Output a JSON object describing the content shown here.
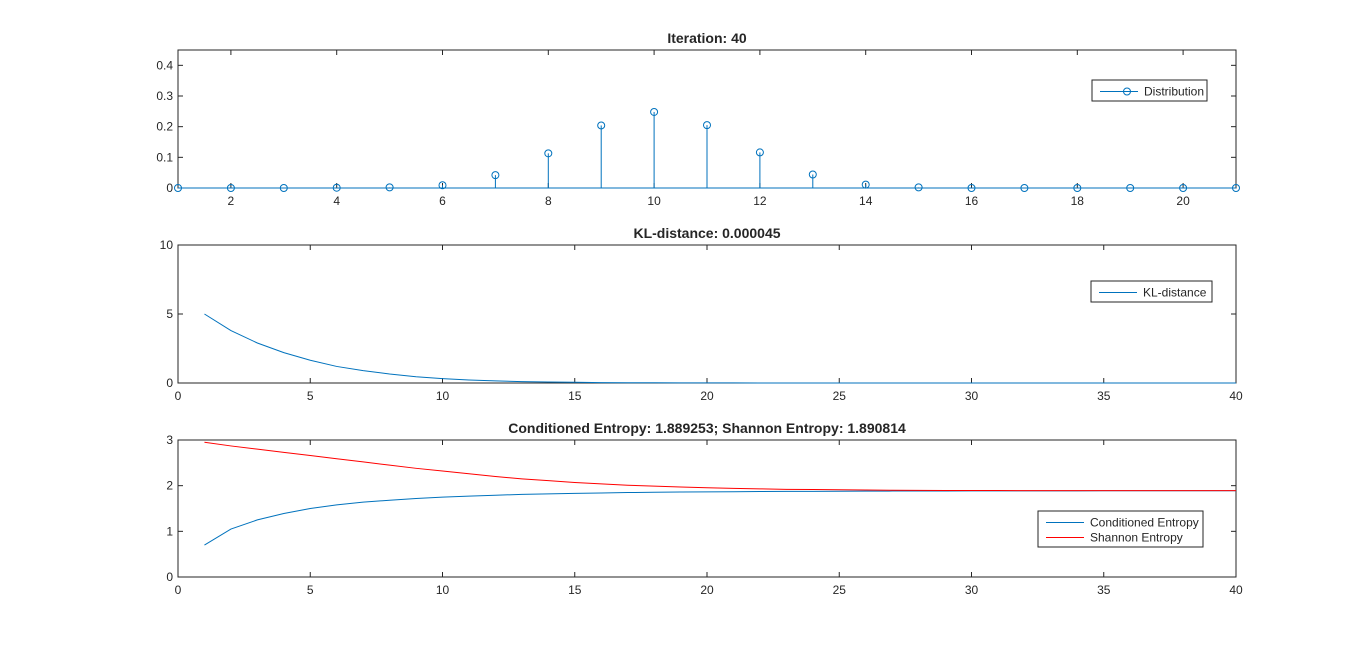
{
  "chart_data": [
    {
      "type": "stem",
      "title": "Iteration: 40",
      "xlabel": "",
      "ylabel": "",
      "xlim": [
        1,
        21
      ],
      "ylim": [
        0,
        0.45
      ],
      "xticks": [
        "2",
        "4",
        "6",
        "8",
        "10",
        "12",
        "14",
        "16",
        "18",
        "20"
      ],
      "yticks": [
        "0",
        "0.1",
        "0.2",
        "0.3",
        "0.4"
      ],
      "grid": false,
      "legend_position": "top-right",
      "series": [
        {
          "name": "Distribution",
          "color": "#0072BD",
          "x": [
            1,
            2,
            3,
            4,
            5,
            6,
            7,
            8,
            9,
            10,
            11,
            12,
            13,
            14,
            15,
            16,
            17,
            18,
            19,
            20,
            21
          ],
          "values": [
            0.0,
            0.0,
            0.0,
            0.001,
            0.002,
            0.009,
            0.042,
            0.113,
            0.204,
            0.248,
            0.205,
            0.116,
            0.044,
            0.011,
            0.002,
            0.0,
            0.0,
            0.0,
            0.0,
            0.0,
            0.0
          ]
        }
      ]
    },
    {
      "type": "line",
      "title": "KL-distance: 0.000045",
      "xlabel": "",
      "ylabel": "",
      "xlim": [
        0,
        40
      ],
      "ylim": [
        0,
        10
      ],
      "xticks": [
        "0",
        "5",
        "10",
        "15",
        "20",
        "25",
        "30",
        "35",
        "40"
      ],
      "yticks": [
        "0",
        "5",
        "10"
      ],
      "grid": false,
      "legend_position": "top-right",
      "series": [
        {
          "name": "KL-distance",
          "color": "#0072BD",
          "x": [
            1,
            2,
            3,
            4,
            5,
            6,
            7,
            8,
            9,
            10,
            11,
            12,
            13,
            14,
            15,
            16,
            17,
            18,
            19,
            20,
            21,
            22,
            23,
            24,
            25,
            26,
            27,
            28,
            29,
            30,
            31,
            32,
            33,
            34,
            35,
            36,
            37,
            38,
            39,
            40
          ],
          "values": [
            5.0,
            3.8,
            2.9,
            2.2,
            1.65,
            1.2,
            0.9,
            0.65,
            0.45,
            0.32,
            0.22,
            0.15,
            0.1,
            0.07,
            0.05,
            0.03,
            0.02,
            0.015,
            0.01,
            0.007,
            0.005,
            0.003,
            0.002,
            0.001,
            0.001,
            0.0,
            0.0,
            0.0,
            0.0,
            0.0,
            0.0,
            0.0,
            0.0,
            0.0,
            0.0,
            0.0,
            0.0,
            0.0,
            0.0,
            0.0
          ]
        }
      ]
    },
    {
      "type": "line",
      "title": "Conditioned Entropy: 1.889253; Shannon Entropy: 1.890814",
      "xlabel": "",
      "ylabel": "",
      "xlim": [
        0,
        40
      ],
      "ylim": [
        0,
        3
      ],
      "xticks": [
        "0",
        "5",
        "10",
        "15",
        "20",
        "25",
        "30",
        "35",
        "40"
      ],
      "yticks": [
        "0",
        "1",
        "2",
        "3"
      ],
      "grid": false,
      "legend_position": "bottom-right",
      "series": [
        {
          "name": "Conditioned Entropy",
          "color": "#0072BD",
          "x": [
            1,
            2,
            3,
            4,
            5,
            6,
            7,
            8,
            9,
            10,
            11,
            12,
            13,
            14,
            15,
            16,
            17,
            18,
            19,
            20,
            21,
            22,
            23,
            24,
            25,
            26,
            27,
            28,
            29,
            30,
            31,
            32,
            33,
            34,
            35,
            36,
            37,
            38,
            39,
            40
          ],
          "values": [
            0.7,
            1.05,
            1.25,
            1.39,
            1.5,
            1.58,
            1.64,
            1.68,
            1.72,
            1.75,
            1.77,
            1.79,
            1.81,
            1.82,
            1.83,
            1.84,
            1.85,
            1.855,
            1.86,
            1.865,
            1.868,
            1.871,
            1.874,
            1.876,
            1.878,
            1.88,
            1.882,
            1.883,
            1.884,
            1.885,
            1.886,
            1.886,
            1.887,
            1.887,
            1.888,
            1.888,
            1.888,
            1.889,
            1.889,
            1.889
          ]
        },
        {
          "name": "Shannon Entropy",
          "color": "#FF0000",
          "x": [
            1,
            2,
            3,
            4,
            5,
            6,
            7,
            8,
            9,
            10,
            11,
            12,
            13,
            14,
            15,
            16,
            17,
            18,
            19,
            20,
            21,
            22,
            23,
            24,
            25,
            26,
            27,
            28,
            29,
            30,
            31,
            32,
            33,
            34,
            35,
            36,
            37,
            38,
            39,
            40
          ],
          "values": [
            2.95,
            2.87,
            2.8,
            2.73,
            2.66,
            2.59,
            2.52,
            2.45,
            2.38,
            2.32,
            2.26,
            2.2,
            2.15,
            2.11,
            2.07,
            2.04,
            2.01,
            1.99,
            1.97,
            1.955,
            1.94,
            1.93,
            1.92,
            1.915,
            1.91,
            1.905,
            1.9,
            1.897,
            1.895,
            1.894,
            1.893,
            1.892,
            1.892,
            1.891,
            1.891,
            1.891,
            1.891,
            1.891,
            1.891,
            1.891
          ]
        }
      ]
    }
  ]
}
